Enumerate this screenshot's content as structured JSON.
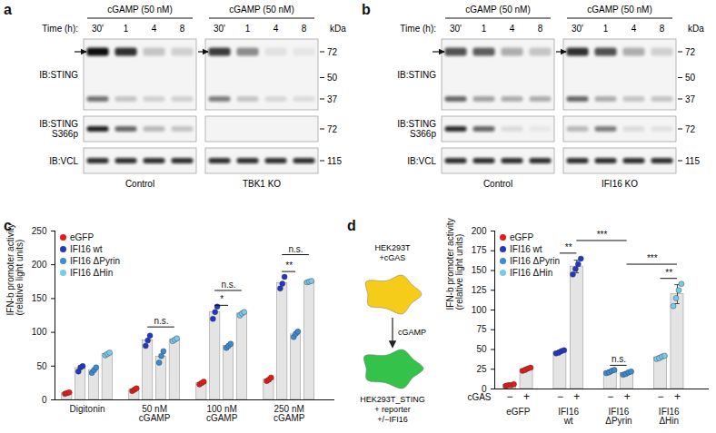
{
  "blots": [
    {
      "panel": "a",
      "treatment": "cGAMP (50 nM)",
      "time_label": "Time (h):",
      "lanes": [
        "30'",
        "1",
        "4",
        "8"
      ],
      "unit": "kDa",
      "conditions": [
        "Control",
        "TBK1 KO"
      ],
      "rows": [
        {
          "label": "IB:STING",
          "markers": [
            72,
            50,
            37
          ],
          "bands": [
            {
              "marker": 72,
              "intensity": [
                1.0,
                0.85,
                0.2,
                0.15,
                0.8,
                0.45,
                0.08,
                0.06
              ]
            },
            {
              "marker": 37,
              "intensity": [
                0.55,
                0.2,
                0.15,
                0.15,
                0.5,
                0.2,
                0.12,
                0.1
              ]
            }
          ]
        },
        {
          "label": "IB:STING\nS366p",
          "markers": [
            72
          ],
          "bands": [
            {
              "marker": 72,
              "intensity": [
                0.9,
                0.6,
                0.25,
                0.2,
                0,
                0,
                0,
                0
              ]
            }
          ]
        },
        {
          "label": "IB:VCL",
          "markers": [
            115
          ],
          "bands": [
            {
              "marker": 115,
              "intensity": [
                0.85,
                0.85,
                0.85,
                0.85,
                0.85,
                0.85,
                0.85,
                0.85
              ]
            }
          ]
        }
      ]
    },
    {
      "panel": "b",
      "treatment": "cGAMP (50 nM)",
      "time_label": "Time (h):",
      "lanes": [
        "30'",
        "1",
        "4",
        "8"
      ],
      "unit": "kDa",
      "conditions": [
        "Control",
        "IFI16 KO"
      ],
      "rows": [
        {
          "label": "IB:STING",
          "markers": [
            72,
            50,
            37
          ],
          "bands": [
            {
              "marker": 72,
              "intensity": [
                0.7,
                0.65,
                0.3,
                0.2,
                0.85,
                0.7,
                0.3,
                0.15
              ]
            },
            {
              "marker": 37,
              "intensity": [
                0.6,
                0.35,
                0.3,
                0.3,
                0.6,
                0.3,
                0.2,
                0.2
              ]
            }
          ]
        },
        {
          "label": "IB:STING\nS366p",
          "markers": [
            72
          ],
          "bands": [
            {
              "marker": 72,
              "intensity": [
                0.85,
                0.6,
                0.1,
                0.05,
                0.25,
                0.5,
                0.1,
                0.08
              ]
            }
          ]
        },
        {
          "label": "IB:VCL",
          "markers": [
            115
          ],
          "bands": [
            {
              "marker": 115,
              "intensity": [
                0.85,
                0.85,
                0.85,
                0.85,
                0.85,
                0.85,
                0.85,
                0.85
              ]
            }
          ]
        }
      ]
    }
  ],
  "diagram": {
    "panel": "d",
    "source": "HEK293T\n+cGAS",
    "signal": "cGAMP",
    "target": "HEK293T_STING\n+ reporter\n+/−IFI16"
  },
  "chart_data": [
    {
      "panel": "c",
      "type": "bar",
      "y_label": "IFN-b promoter activity\n(relative light units)",
      "categories": [
        "Digitonin",
        "50 nM\ncGAMP",
        "100 nM\ncGAMP",
        "250 nM\ncGAMP"
      ],
      "series": [
        {
          "name": "eGFP",
          "color": "#e41a1c",
          "values": [
            10,
            15,
            25,
            30
          ],
          "points": [
            [
              9,
              10,
              11
            ],
            [
              13,
              15,
              17
            ],
            [
              23,
              25,
              27
            ],
            [
              28,
              30,
              33
            ]
          ]
        },
        {
          "name": "IFI16 wt",
          "color": "#2238c4",
          "values": [
            47,
            88,
            130,
            173
          ],
          "points": [
            [
              42,
              48,
              50
            ],
            [
              80,
              88,
              95
            ],
            [
              120,
              130,
              138
            ],
            [
              165,
              172,
              182
            ]
          ]
        },
        {
          "name": "IFI16 ΔPyrin",
          "color": "#3a8ad6",
          "values": [
            44,
            64,
            80,
            97
          ],
          "points": [
            [
              40,
              44,
              48
            ],
            [
              55,
              65,
              72
            ],
            [
              77,
              80,
              83
            ],
            [
              93,
              98,
              101
            ]
          ]
        },
        {
          "name": "IFI16 ΔHin",
          "color": "#79c9ea",
          "values": [
            68,
            89,
            128,
            175
          ],
          "points": [
            [
              66,
              68,
              70
            ],
            [
              87,
              89,
              91
            ],
            [
              125,
              128,
              130
            ],
            [
              174,
              175,
              176
            ]
          ]
        }
      ],
      "ylim": [
        0,
        250
      ],
      "yticks": [
        0,
        50,
        100,
        150,
        200,
        250
      ],
      "legend": "top-left",
      "annotations": [
        {
          "from": [
            "IFI16 wt",
            "50 nM\ncGAMP"
          ],
          "to": [
            "IFI16 ΔHin",
            "50 nM\ncGAMP"
          ],
          "y": 108,
          "label": "n.s."
        },
        {
          "from": [
            "IFI16 wt",
            "100 nM\ncGAMP"
          ],
          "to": [
            "IFI16 ΔPyrin",
            "100 nM\ncGAMP"
          ],
          "y": 140,
          "label": "*"
        },
        {
          "from": [
            "IFI16 wt",
            "100 nM\ncGAMP"
          ],
          "to": [
            "IFI16 ΔHin",
            "100 nM\ncGAMP"
          ],
          "y": 162,
          "label": "n.s."
        },
        {
          "from": [
            "IFI16 wt",
            "250 nM\ncGAMP"
          ],
          "to": [
            "IFI16 ΔPyrin",
            "250 nM\ncGAMP"
          ],
          "y": 190,
          "label": "**"
        },
        {
          "from": [
            "IFI16 wt",
            "250 nM\ncGAMP"
          ],
          "to": [
            "IFI16 ΔHin",
            "250 nM\ncGAMP"
          ],
          "y": 215,
          "label": "n.s."
        }
      ]
    },
    {
      "panel": "d",
      "type": "bar",
      "y_label": "IFN-b promoter activity\n(relative light units)",
      "x_label": "cGAS",
      "categories": [
        "−",
        "+"
      ],
      "series": [
        {
          "name": "eGFP",
          "color": "#e41a1c",
          "values": [
            5,
            25
          ],
          "errors": [
            1,
            2
          ],
          "points": [
            [
              4,
              5,
              5,
              6
            ],
            [
              23,
              24,
              26,
              27
            ]
          ]
        },
        {
          "name": "IFI16 wt",
          "color": "#2238c4",
          "values": [
            47,
            155
          ],
          "errors": [
            2,
            8
          ],
          "points": [
            [
              45,
              46,
              48,
              49
            ],
            [
              145,
              152,
              158,
              165
            ]
          ]
        },
        {
          "name": "IFI16 ΔPyrin",
          "color": "#3a8ad6",
          "values": [
            22,
            20
          ],
          "errors": [
            2,
            2
          ],
          "points": [
            [
              20,
              21,
              23,
              24
            ],
            [
              18,
              19,
              21,
              22
            ]
          ]
        },
        {
          "name": "IFI16 ΔHin",
          "color": "#79c9ea",
          "values": [
            40,
            120
          ],
          "errors": [
            2,
            12
          ],
          "points": [
            [
              38,
              39,
              41,
              42
            ],
            [
              105,
              115,
              125,
              133
            ]
          ]
        }
      ],
      "ylim": [
        0,
        200
      ],
      "yticks": [
        0,
        25,
        50,
        75,
        100,
        125,
        150,
        175,
        200
      ],
      "legend": "top-left",
      "annotations": [
        {
          "from": [
            "IFI16 wt",
            "−"
          ],
          "to": [
            "IFI16 wt",
            "+"
          ],
          "y": 172,
          "label": "**"
        },
        {
          "from": [
            "IFI16 wt",
            "+"
          ],
          "to": [
            "IFI16 ΔPyrin",
            "+"
          ],
          "y": 188,
          "label": "***"
        },
        {
          "from": [
            "IFI16 ΔPyrin",
            "−"
          ],
          "to": [
            "IFI16 ΔPyrin",
            "+"
          ],
          "y": 30,
          "label": "n.s."
        },
        {
          "from": [
            "IFI16 ΔPyrin",
            "+"
          ],
          "to": [
            "IFI16 ΔHin",
            "+"
          ],
          "y": 158,
          "label": "***"
        },
        {
          "from": [
            "IFI16 ΔHin",
            "−"
          ],
          "to": [
            "IFI16 ΔHin",
            "+"
          ],
          "y": 140,
          "label": "**"
        }
      ]
    }
  ]
}
